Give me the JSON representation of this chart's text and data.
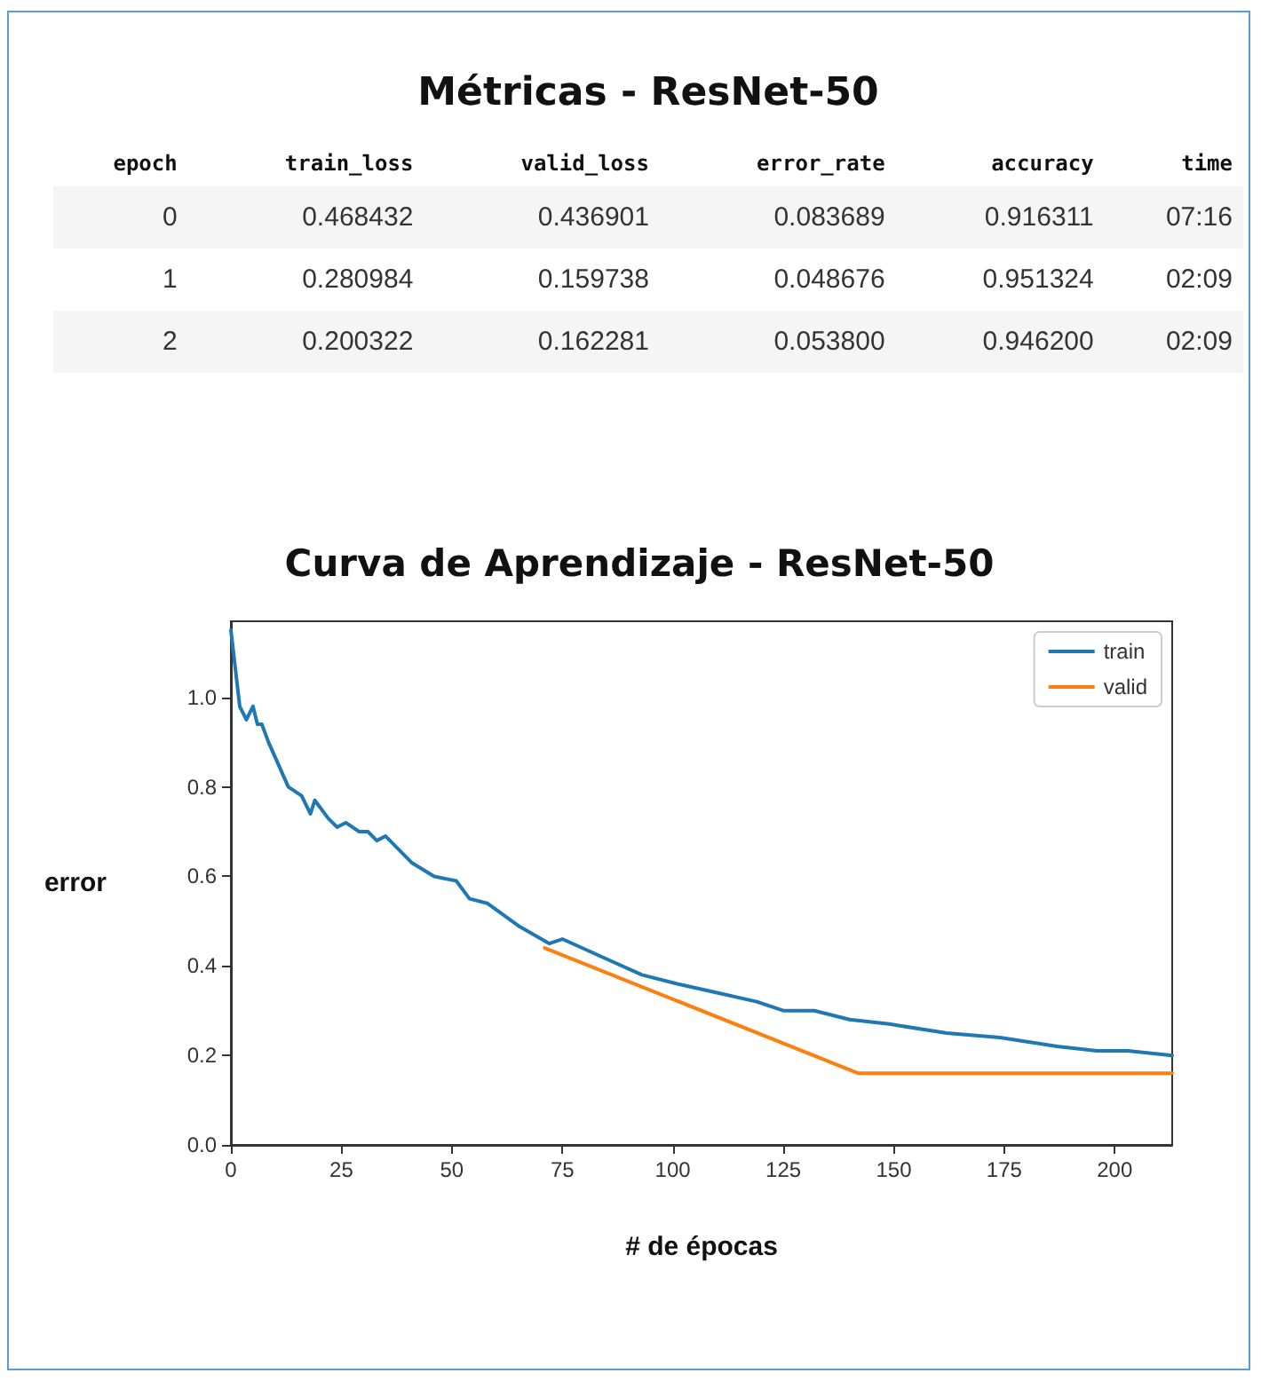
{
  "chart_data": [
    {
      "type": "other",
      "title": "Métricas - ResNet-50",
      "categories": [
        "epoch",
        "train_loss",
        "valid_loss",
        "error_rate",
        "accuracy",
        "time"
      ],
      "cell_labels": [
        [
          "0",
          "0.468432",
          "0.436901",
          "0.083689",
          "0.916311",
          "07:16"
        ],
        [
          "1",
          "0.280984",
          "0.159738",
          "0.048676",
          "0.951324",
          "02:09"
        ],
        [
          "2",
          "0.200322",
          "0.162281",
          "0.053800",
          "0.946200",
          "02:09"
        ]
      ]
    },
    {
      "type": "line",
      "title": "Curva de Aprendizaje - ResNet-50",
      "xlabel": "# de épocas",
      "ylabel": "error",
      "series": [
        {
          "name": "train",
          "color": "#1f77b4",
          "x": [
            0,
            2,
            3.5,
            5,
            6,
            7,
            8.5,
            13,
            16,
            18,
            19,
            22,
            24,
            26,
            29,
            31,
            33,
            35,
            41,
            46,
            51,
            54,
            58,
            65,
            72,
            75,
            84,
            93,
            101,
            110,
            119,
            125,
            132,
            140,
            149,
            162,
            174,
            187,
            196,
            203,
            213
          ],
          "values": [
            1.15,
            0.98,
            0.95,
            0.98,
            0.94,
            0.94,
            0.9,
            0.8,
            0.78,
            0.74,
            0.77,
            0.73,
            0.71,
            0.72,
            0.7,
            0.7,
            0.68,
            0.69,
            0.63,
            0.6,
            0.59,
            0.55,
            0.54,
            0.49,
            0.45,
            0.46,
            0.42,
            0.38,
            0.36,
            0.34,
            0.32,
            0.3,
            0.3,
            0.28,
            0.27,
            0.25,
            0.24,
            0.22,
            0.21,
            0.21,
            0.2
          ]
        },
        {
          "name": "valid",
          "color": "#ff7f0e",
          "x": [
            71,
            142,
            213
          ],
          "values": [
            0.44,
            0.16,
            0.16
          ]
        }
      ],
      "xlim": [
        0,
        213
      ],
      "xticks": [
        0,
        25,
        50,
        75,
        100,
        125,
        150,
        175,
        200
      ],
      "ylim": [
        0,
        1.17
      ],
      "yticks": [
        {
          "value": 0,
          "label": "0.0"
        },
        0.2,
        0.4,
        0.6,
        0.8,
        {
          "value": 1,
          "label": "1.0"
        }
      ],
      "legend": "top right",
      "marker": "none",
      "line_style": "solid",
      "grid": false
    }
  ]
}
